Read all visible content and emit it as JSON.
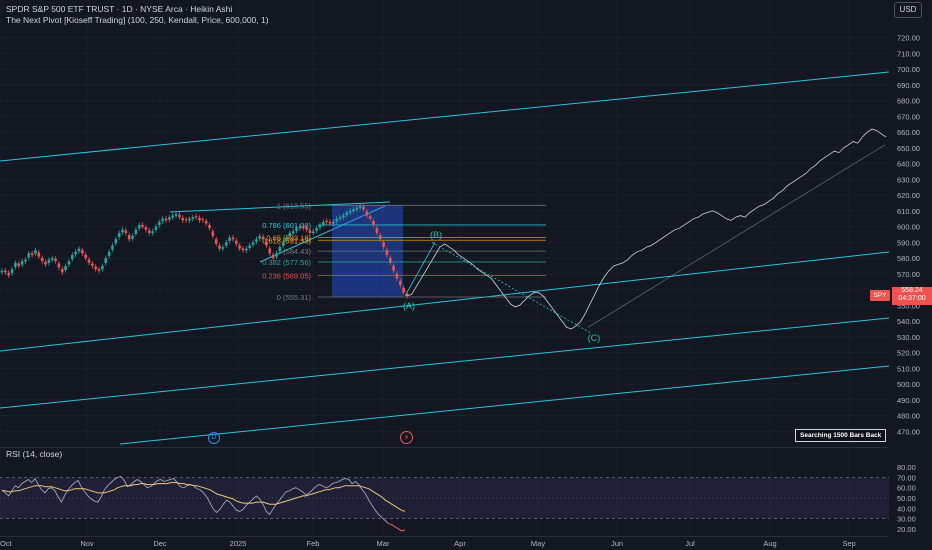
{
  "header": {
    "title": "SPDR S&P 500 ETF TRUST · 1D · NYSE Arca · Heikin Ashi",
    "indicator": "The Next Pivot [Kioseff Trading] (100, 250, Kendall, Price, 600,000, 1)",
    "currency": "USD"
  },
  "price_tag": {
    "symbol": "SPY",
    "price": "558.24",
    "countdown": "04:37:00",
    "color": "#ef5350"
  },
  "search_badge": "Searching 1500 Bars Back",
  "markers": {
    "d_label": "D",
    "flash_icon": "lightning-icon"
  },
  "colors": {
    "background": "#131722",
    "up": "#26a69a",
    "down": "#ef5350",
    "channel": "#26c6da",
    "rsi": "#b2b5be",
    "rsi_ma": "#f0c674",
    "fib_box": "#2962ff"
  },
  "chart_data": [
    {
      "type": "candlestick",
      "style": "Heikin Ashi",
      "x_axis_labels": [
        "Oct",
        "Nov",
        "Dec",
        "2025",
        "Feb",
        "Mar",
        "Apr",
        "May",
        "Jun",
        "Jul",
        "Aug",
        "Sep"
      ],
      "y_axis": {
        "ylim": [
          460,
          730
        ],
        "ticks": [
          470,
          480,
          490,
          500,
          510,
          520,
          530,
          540,
          550,
          560,
          570,
          580,
          590,
          600,
          610,
          620,
          630,
          640,
          650,
          660,
          670,
          680,
          690,
          700,
          710,
          720
        ],
        "tick_labels": [
          "470.00",
          "480.00",
          "490.00",
          "500.00",
          "510.00",
          "520.00",
          "530.00",
          "540.00",
          "550.00",
          "560.00",
          "570.00",
          "580.00",
          "590.00",
          "600.00",
          "610.00",
          "620.00",
          "630.00",
          "640.00",
          "650.00",
          "660.00",
          "670.00",
          "680.00",
          "690.00",
          "700.00",
          "710.00",
          "720.00"
        ]
      },
      "candles_close": [
        572,
        571,
        569,
        573,
        577,
        575,
        578,
        579,
        583,
        582,
        585,
        581,
        578,
        576,
        579,
        580,
        578,
        574,
        571,
        575,
        578,
        582,
        584,
        586,
        583,
        580,
        577,
        575,
        573,
        572,
        575,
        580,
        584,
        588,
        592,
        596,
        598,
        596,
        592,
        594,
        598,
        601,
        600,
        598,
        596,
        597,
        600,
        603,
        605,
        604,
        606,
        607,
        608,
        606,
        604,
        604,
        605,
        606,
        606,
        604,
        604,
        602,
        599,
        594,
        589,
        586,
        587,
        590,
        593,
        592,
        589,
        586,
        585,
        586,
        588,
        590,
        592,
        594,
        592,
        588,
        583,
        580,
        583,
        587,
        590,
        593,
        596,
        597,
        599,
        600,
        599,
        598,
        596,
        597,
        599,
        601,
        603,
        603,
        602,
        603,
        605,
        606,
        607,
        609,
        610,
        611,
        612,
        613,
        611,
        607,
        605,
        601,
        596,
        592,
        587,
        582,
        577,
        572,
        567,
        563,
        558,
        556
      ],
      "projection": [
        556,
        557,
        562,
        567,
        572,
        577,
        582,
        587,
        589,
        587,
        585,
        582,
        580,
        578,
        576,
        573,
        571,
        569,
        567,
        563,
        559,
        555,
        551,
        549,
        550,
        553,
        556,
        558,
        558,
        556,
        552,
        548,
        544,
        540,
        536,
        535,
        537,
        540,
        545,
        551,
        557,
        563,
        568,
        572,
        575,
        576,
        577,
        579,
        582,
        584,
        585,
        587,
        588,
        590,
        592,
        594,
        596,
        598,
        599,
        601,
        603,
        605,
        606,
        608,
        609,
        610,
        609,
        607,
        605,
        604,
        606,
        607,
        606,
        609,
        611,
        613,
        614,
        616,
        618,
        621,
        623,
        626,
        628,
        630,
        632,
        634,
        637,
        639,
        642,
        644,
        646,
        648,
        647,
        650,
        652,
        654,
        653,
        657,
        660,
        662,
        661,
        659,
        657
      ],
      "fib_levels": [
        {
          "label": "1 (613.55)",
          "value": 613.55
        },
        {
          "label": "0.786 (601.08)",
          "value": 601.08
        },
        {
          "label": "0.65 (593.18)",
          "value": 593.18
        },
        {
          "label": "0.618 (591.33)",
          "value": 591.33
        },
        {
          "label": "(584.43)",
          "value": 584.43
        },
        {
          "label": "0.382 (577.56)",
          "value": 577.56
        },
        {
          "label": "0.236 (569.05)",
          "value": 569.05
        },
        {
          "label": "0 (555.31)",
          "value": 555.31
        }
      ],
      "wave_labels": [
        {
          "label": "(A)",
          "value": 555.31
        },
        {
          "label": "(B)",
          "value": 589
        },
        {
          "label": "(C)",
          "value": 535
        }
      ]
    },
    {
      "type": "line",
      "title": "RSI (14, close)",
      "ylim": [
        15,
        85
      ],
      "ticks": [
        20,
        30,
        40,
        50,
        60,
        70,
        80
      ],
      "tick_labels": [
        "20.00",
        "30.00",
        "40.00",
        "50.00",
        "60.00",
        "70.00",
        "80.00"
      ],
      "bands": [
        30,
        70
      ],
      "series": [
        {
          "values": [
            58,
            55,
            52,
            57,
            62,
            60,
            64,
            66,
            68,
            65,
            69,
            63,
            58,
            55,
            59,
            60,
            57,
            51,
            46,
            53,
            58,
            62,
            65,
            67,
            61,
            56,
            52,
            49,
            47,
            46,
            51,
            58,
            62,
            65,
            68,
            70,
            71,
            67,
            61,
            63,
            66,
            68,
            66,
            63,
            60,
            61,
            64,
            67,
            68,
            66,
            67,
            68,
            69,
            65,
            61,
            60,
            62,
            63,
            62,
            59,
            58,
            55,
            51,
            45,
            39,
            36,
            39,
            44,
            48,
            46,
            42,
            38,
            37,
            39,
            43,
            46,
            49,
            52,
            49,
            44,
            37,
            34,
            39,
            44,
            48,
            52,
            56,
            57,
            59,
            60,
            58,
            56,
            53,
            55,
            58,
            61,
            63,
            62,
            60,
            61,
            64,
            65,
            66,
            68,
            69,
            68,
            64,
            66,
            63,
            58,
            54,
            48,
            43,
            38,
            34,
            31,
            28,
            25,
            24,
            22,
            20,
            18,
            19
          ]
        },
        {
          "values": [
            57,
            57,
            56,
            56,
            57,
            57,
            58,
            59,
            60,
            61,
            62,
            62,
            62,
            61,
            61,
            61,
            60,
            59,
            58,
            57,
            57,
            58,
            59,
            59,
            59,
            59,
            58,
            57,
            56,
            55,
            55,
            55,
            56,
            57,
            58,
            60,
            61,
            62,
            62,
            62,
            63,
            63,
            64,
            64,
            63,
            63,
            63,
            64,
            64,
            64,
            64,
            65,
            65,
            65,
            64,
            64,
            63,
            63,
            62,
            62,
            61,
            60,
            59,
            58,
            56,
            54,
            53,
            52,
            51,
            50,
            49,
            47,
            46,
            45,
            45,
            45,
            45,
            46,
            46,
            46,
            45,
            44,
            44,
            44,
            45,
            46,
            47,
            48,
            49,
            50,
            51,
            52,
            52,
            53,
            54,
            55,
            56,
            57,
            58,
            58,
            59,
            60,
            60,
            61,
            62,
            62,
            62,
            62,
            62,
            61,
            60,
            59,
            57,
            55,
            53,
            51,
            48,
            46,
            44,
            42,
            40,
            38,
            37
          ]
        }
      ]
    }
  ]
}
